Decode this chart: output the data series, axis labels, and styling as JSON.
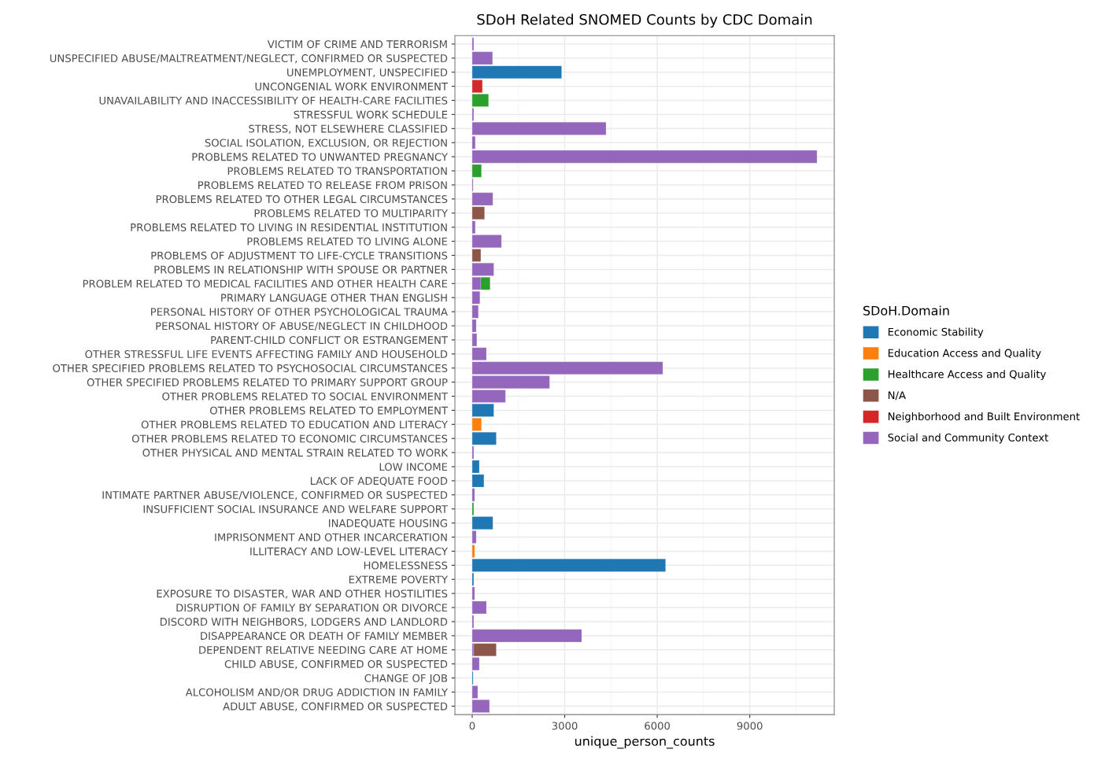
{
  "chart_data": {
    "type": "bar",
    "orientation": "horizontal",
    "stacked": true,
    "title": "SDoH Related SNOMED Counts by CDC Domain",
    "xlabel": "unique_person_counts",
    "legend_title": "SDoH.Domain",
    "legend": "right",
    "grid": true,
    "xlim": [
      -560,
      11740
    ],
    "xticks": [
      0,
      3000,
      6000,
      9000
    ],
    "categories": [
      "VICTIM OF CRIME AND TERRORISM",
      "UNSPECIFIED ABUSE/MALTREATMENT/NEGLECT, CONFIRMED OR SUSPECTED",
      "UNEMPLOYMENT, UNSPECIFIED",
      "UNCONGENIAL WORK ENVIRONMENT",
      "UNAVAILABILITY AND INACCESSIBILITY OF HEALTH-CARE FACILITIES",
      "STRESSFUL WORK SCHEDULE",
      "STRESS, NOT ELSEWHERE CLASSIFIED",
      "SOCIAL ISOLATION, EXCLUSION, OR REJECTION",
      "PROBLEMS RELATED TO UNWANTED PREGNANCY",
      "PROBLEMS RELATED TO TRANSPORTATION",
      "PROBLEMS RELATED TO RELEASE FROM PRISON",
      "PROBLEMS RELATED TO OTHER LEGAL CIRCUMSTANCES",
      "PROBLEMS RELATED TO MULTIPARITY",
      "PROBLEMS RELATED TO LIVING IN RESIDENTIAL INSTITUTION",
      "PROBLEMS RELATED TO LIVING ALONE",
      "PROBLEMS OF ADJUSTMENT TO LIFE-CYCLE TRANSITIONS",
      "PROBLEMS IN RELATIONSHIP WITH SPOUSE OR PARTNER",
      "PROBLEM RELATED TO MEDICAL FACILITIES AND OTHER HEALTH CARE",
      "PRIMARY LANGUAGE OTHER THAN ENGLISH",
      "PERSONAL HISTORY OF OTHER PSYCHOLOGICAL TRAUMA",
      "PERSONAL HISTORY OF ABUSE/NEGLECT IN CHILDHOOD",
      "PARENT-CHILD CONFLICT OR ESTRANGEMENT",
      "OTHER STRESSFUL LIFE EVENTS AFFECTING FAMILY AND HOUSEHOLD",
      "OTHER SPECIFIED PROBLEMS RELATED TO PSYCHOSOCIAL CIRCUMSTANCES",
      "OTHER SPECIFIED PROBLEMS RELATED TO PRIMARY SUPPORT GROUP",
      "OTHER PROBLEMS RELATED TO SOCIAL ENVIRONMENT",
      "OTHER PROBLEMS RELATED TO EMPLOYMENT",
      "OTHER PROBLEMS RELATED TO EDUCATION AND LITERACY",
      "OTHER PROBLEMS RELATED TO ECONOMIC CIRCUMSTANCES",
      "OTHER PHYSICAL AND MENTAL STRAIN RELATED TO WORK",
      "LOW INCOME",
      "LACK OF ADEQUATE FOOD",
      "INTIMATE PARTNER ABUSE/VIOLENCE, CONFIRMED OR SUSPECTED",
      "INSUFFICIENT SOCIAL INSURANCE AND WELFARE SUPPORT",
      "INADEQUATE HOUSING",
      "IMPRISONMENT AND OTHER INCARCERATION",
      "ILLITERACY AND LOW-LEVEL LITERACY",
      "HOMELESSNESS",
      "EXTREME POVERTY",
      "EXPOSURE TO DISASTER, WAR AND OTHER HOSTILITIES",
      "DISRUPTION OF FAMILY BY SEPARATION OR DIVORCE",
      "DISCORD WITH NEIGHBORS, LODGERS AND LANDLORD",
      "DISAPPEARANCE OR DEATH OF FAMILY MEMBER",
      "DEPENDENT RELATIVE NEEDING CARE AT HOME",
      "CHILD ABUSE, CONFIRMED OR SUSPECTED",
      "CHANGE OF JOB",
      "ALCOHOLISM AND/OR DRUG ADDICTION IN FAMILY",
      "ADULT ABUSE, CONFIRMED OR SUSPECTED"
    ],
    "series": [
      {
        "name": "Social and Community Context",
        "color": "#9467bd",
        "values": [
          50,
          660,
          null,
          null,
          null,
          50,
          4340,
          100,
          11180,
          null,
          30,
          670,
          null,
          100,
          950,
          null,
          700,
          280,
          250,
          200,
          130,
          150,
          460,
          6180,
          2510,
          1080,
          null,
          null,
          null,
          50,
          null,
          null,
          80,
          null,
          null,
          130,
          null,
          null,
          null,
          80,
          460,
          50,
          3550,
          50,
          230,
          null,
          180,
          560
        ]
      },
      {
        "name": "Neighborhood and Built Environment",
        "color": "#d62728",
        "values": [
          null,
          null,
          null,
          330,
          null,
          null,
          null,
          null,
          null,
          null,
          null,
          null,
          null,
          null,
          null,
          null,
          null,
          null,
          null,
          null,
          null,
          null,
          null,
          null,
          null,
          null,
          null,
          null,
          null,
          null,
          null,
          null,
          null,
          null,
          null,
          null,
          null,
          null,
          null,
          null,
          null,
          null,
          null,
          null,
          null,
          null,
          null,
          null
        ]
      },
      {
        "name": "N/A",
        "color": "#8c564b",
        "values": [
          null,
          null,
          null,
          null,
          null,
          null,
          null,
          null,
          null,
          null,
          null,
          null,
          400,
          null,
          null,
          280,
          null,
          null,
          null,
          null,
          null,
          null,
          null,
          null,
          null,
          null,
          null,
          null,
          null,
          null,
          null,
          null,
          null,
          null,
          null,
          null,
          null,
          null,
          null,
          null,
          null,
          null,
          null,
          730,
          null,
          null,
          null,
          null
        ]
      },
      {
        "name": "Healthcare Access and Quality",
        "color": "#2ca02c",
        "values": [
          null,
          null,
          null,
          null,
          530,
          null,
          null,
          null,
          null,
          300,
          null,
          null,
          null,
          null,
          null,
          null,
          null,
          300,
          null,
          null,
          null,
          null,
          null,
          null,
          null,
          null,
          null,
          null,
          null,
          null,
          null,
          null,
          null,
          50,
          null,
          null,
          null,
          null,
          null,
          null,
          null,
          null,
          null,
          null,
          null,
          null,
          null,
          null
        ]
      },
      {
        "name": "Education Access and Quality",
        "color": "#ff7f0e",
        "values": [
          null,
          null,
          null,
          null,
          null,
          null,
          null,
          null,
          null,
          null,
          null,
          null,
          null,
          null,
          null,
          null,
          null,
          null,
          null,
          null,
          null,
          null,
          null,
          null,
          null,
          null,
          null,
          300,
          null,
          null,
          null,
          null,
          null,
          null,
          null,
          null,
          80,
          null,
          null,
          null,
          null,
          null,
          null,
          null,
          null,
          null,
          null,
          null
        ]
      },
      {
        "name": "Economic Stability",
        "color": "#1f77b4",
        "values": [
          null,
          null,
          2900,
          null,
          null,
          null,
          null,
          null,
          null,
          null,
          null,
          null,
          null,
          null,
          null,
          null,
          null,
          null,
          null,
          null,
          null,
          null,
          null,
          null,
          null,
          null,
          700,
          null,
          780,
          null,
          230,
          380,
          null,
          null,
          670,
          null,
          null,
          6270,
          50,
          null,
          null,
          null,
          null,
          null,
          null,
          30,
          null,
          null
        ]
      }
    ]
  }
}
